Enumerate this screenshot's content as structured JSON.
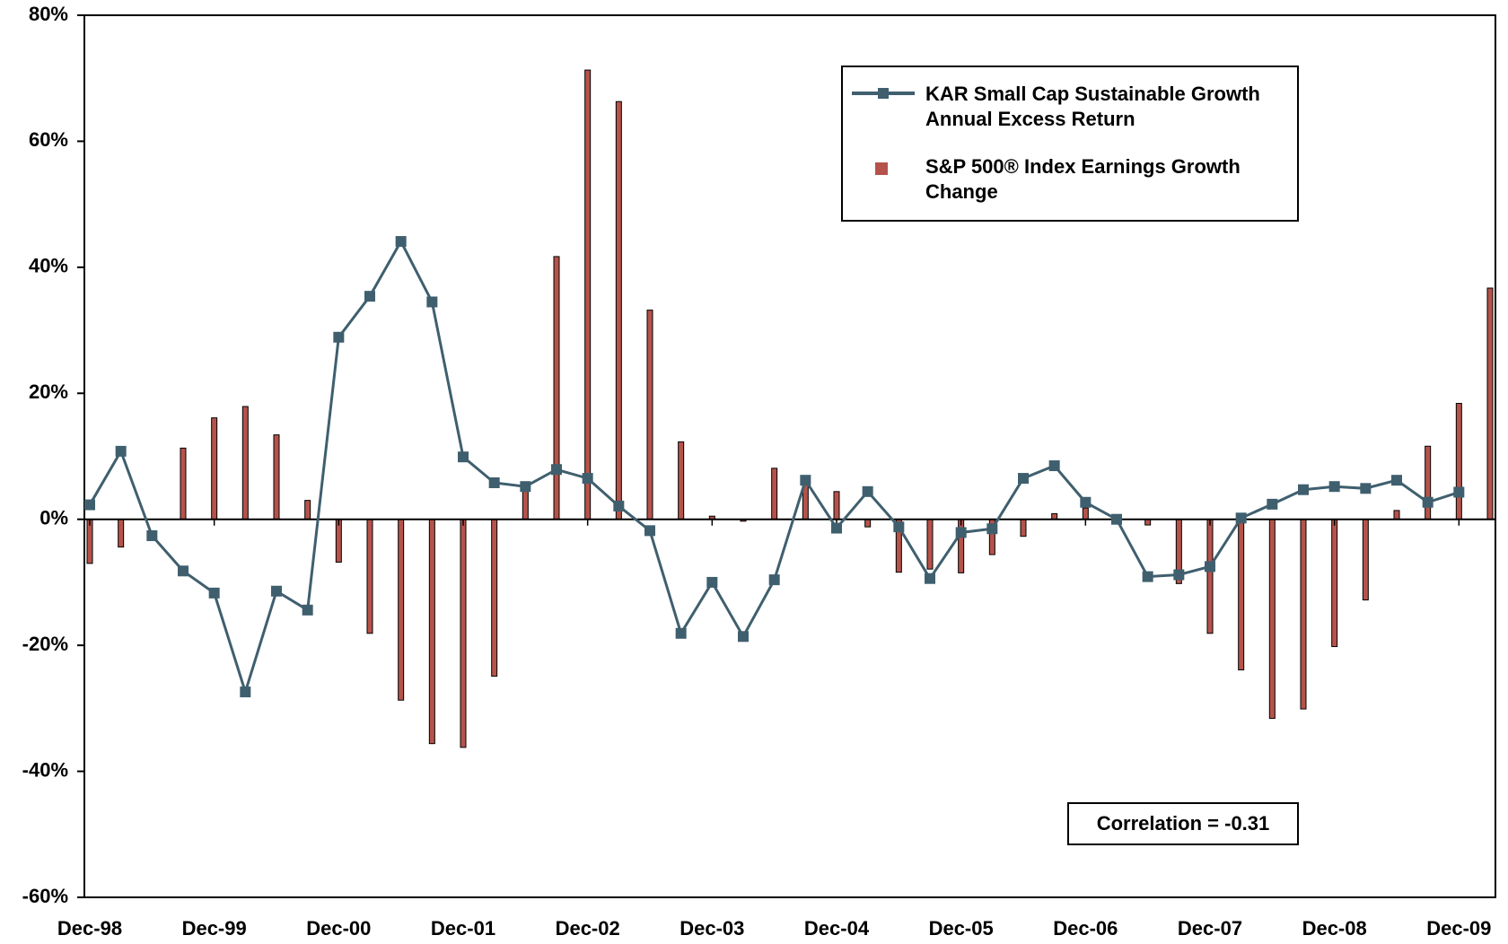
{
  "chart_data": {
    "type": "bar-line",
    "categories": [
      "Dec-98",
      null,
      null,
      null,
      "Dec-99",
      null,
      null,
      null,
      "Dec-00",
      null,
      null,
      null,
      "Dec-01",
      null,
      null,
      null,
      "Dec-02",
      null,
      null,
      null,
      "Dec-03",
      null,
      null,
      null,
      "Dec-04",
      null,
      null,
      null,
      "Dec-05",
      null,
      null,
      null,
      "Dec-06",
      null,
      null,
      null,
      "Dec-07",
      null,
      null,
      null,
      "Dec-08",
      null,
      null,
      null,
      "Dec-09",
      null
    ],
    "series": [
      {
        "name": "KAR Small Cap Sustainable Growth Annual Excess Return",
        "type": "line",
        "color": "#3f5f6e",
        "values": [
          2.3,
          10.8,
          -2.6,
          -8.2,
          -11.7,
          -27.4,
          -11.4,
          -14.4,
          28.9,
          35.4,
          44.1,
          34.5,
          9.9,
          5.8,
          5.2,
          7.9,
          6.5,
          2.1,
          -1.8,
          -18.1,
          -10.0,
          -18.6,
          -9.6,
          6.2,
          -1.4,
          4.4,
          -1.2,
          -9.4,
          -2.1,
          -1.5,
          6.5,
          8.5,
          2.7,
          0,
          -9.1,
          -8.8,
          -7.5,
          0.2,
          2.4,
          4.7,
          5.2,
          4.9,
          6.2,
          2.7,
          4.3,
          null
        ]
      },
      {
        "name": "S&P 500® Index Earnings Growth Change",
        "type": "bar",
        "color": "#b5534b",
        "values": [
          -7,
          -4.4,
          0,
          11.3,
          16.1,
          17.9,
          13.4,
          3.0,
          -6.8,
          -18.1,
          -28.7,
          -35.6,
          -36.2,
          -24.9,
          5.5,
          41.7,
          71.3,
          66.3,
          33.2,
          12.3,
          0.5,
          -0.3,
          8.1,
          6.4,
          4.4,
          -1.2,
          -8.4,
          -7.9,
          -8.5,
          -5.6,
          -2.7,
          0.9,
          1.8,
          0,
          -0.9,
          -10.2,
          -18.1,
          -23.9,
          -31.6,
          -30.1,
          -20.2,
          -12.8,
          1.4,
          11.6,
          18.4,
          36.7
        ]
      }
    ],
    "ylim": [
      -60,
      80
    ],
    "yticks": [
      {
        "value": -60,
        "label": "-60%"
      },
      {
        "value": -40,
        "label": "-40%"
      },
      {
        "value": -20,
        "label": "-20%"
      },
      {
        "value": 0,
        "label": "0%"
      },
      {
        "value": 20,
        "label": "20%"
      },
      {
        "value": 40,
        "label": "40%"
      },
      {
        "value": 60,
        "label": "60%"
      },
      {
        "value": 80,
        "label": "80%"
      }
    ],
    "annotation": "Correlation = -0.31"
  }
}
